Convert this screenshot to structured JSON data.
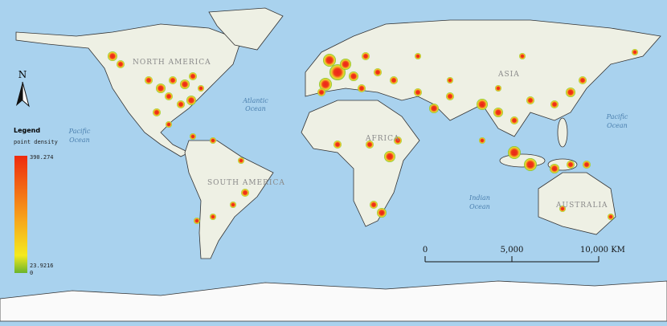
{
  "north_arrow": "N",
  "regions": {
    "north_america": "NORTH AMERICA",
    "south_america": "SOUTH AMERICA",
    "africa": "AFRICA",
    "asia": "ASIA",
    "australia": "AUSTRALIA"
  },
  "oceans": {
    "atlantic": [
      "Atlantic",
      "Ocean"
    ],
    "pacific_east": [
      "Pacific",
      "Ocean"
    ],
    "pacific_west": [
      "Pacific",
      "Ocean"
    ],
    "indian": [
      "Indian",
      "Ocean"
    ]
  },
  "legend": {
    "title": "Legend",
    "subtitle": "point density",
    "max": "390.274",
    "min": "23.9216",
    "zero": "0"
  },
  "scale_bar": {
    "labels": [
      "0",
      "5,000",
      "10,000 KM"
    ]
  }
}
